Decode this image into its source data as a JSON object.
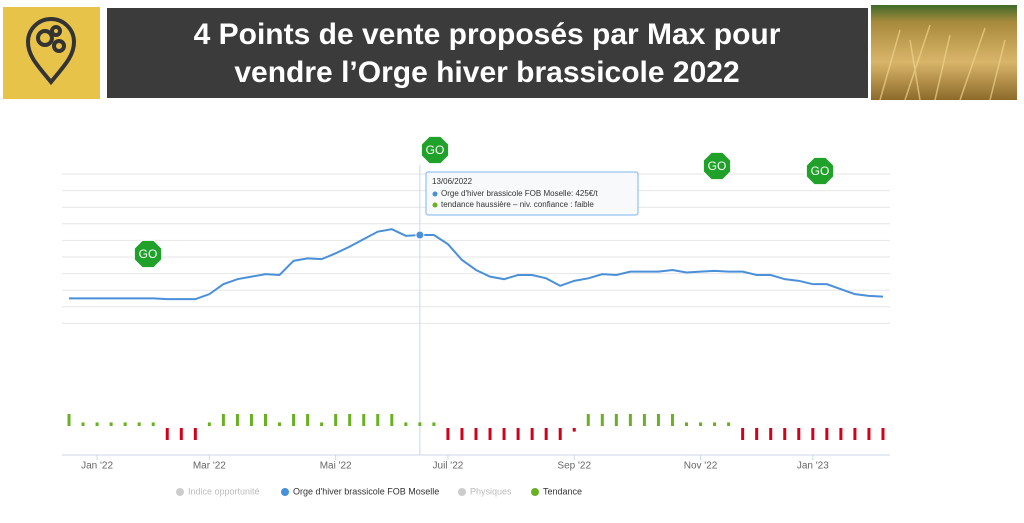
{
  "header": {
    "title_lines": [
      "4 Points de vente proposés par Max pour",
      "vendre l’Orge hiver brassicole 2022"
    ]
  },
  "chart_data": {
    "type": "line",
    "categories": [
      null,
      null,
      "Jan '22",
      null,
      null,
      null,
      null,
      null,
      null,
      null,
      "Mar '22",
      null,
      null,
      null,
      null,
      null,
      null,
      null,
      null,
      "Mai '22",
      null,
      null,
      null,
      null,
      null,
      null,
      null,
      "Juil '22",
      null,
      null,
      null,
      null,
      null,
      null,
      null,
      null,
      "Sep '22",
      null,
      null,
      null,
      null,
      null,
      null,
      null,
      null,
      "Nov '22",
      null,
      null,
      null,
      null,
      null,
      null,
      null,
      "Jan '23",
      null,
      null,
      null,
      null,
      null
    ],
    "ylim": [
      293,
      509
    ],
    "series": [
      {
        "name": "Orge d'hiver brassicole FOB Moselle",
        "color": "#4a90d9",
        "values": [
          349,
          349,
          349,
          349,
          349,
          349,
          349,
          348,
          348,
          348,
          354,
          366,
          372,
          375,
          378,
          377,
          394,
          397,
          396,
          403,
          411,
          420,
          429,
          432,
          424,
          425,
          425,
          414,
          395,
          383,
          375,
          372,
          377,
          377,
          373,
          364,
          370,
          373,
          378,
          377,
          381,
          381,
          381,
          383,
          380,
          381,
          382,
          381,
          381,
          377,
          377,
          372,
          370,
          366,
          366,
          360,
          354,
          352,
          351
        ]
      },
      {
        "name": "Tendance",
        "color": "#6ab023",
        "negative_color": "#d0021b",
        "values": [
          1,
          0.3,
          0.3,
          0.3,
          0.3,
          0.3,
          0.3,
          -1,
          -1,
          -1,
          0.3,
          1,
          1,
          1,
          1,
          0.3,
          1,
          1,
          0.3,
          1,
          1,
          1,
          1,
          1,
          0.3,
          0.3,
          0.3,
          -1,
          -1,
          -1,
          -1,
          -1,
          -1,
          -1,
          -1,
          -1,
          -0.3,
          1,
          1,
          1,
          1,
          1,
          1,
          1,
          0.3,
          0.3,
          0.3,
          0.3,
          -1,
          -1,
          -1,
          -1,
          -1,
          -1,
          -1,
          -1,
          -1,
          -1,
          -1
        ]
      }
    ],
    "hidden_series": [
      {
        "name": "Indice opportunité",
        "color": "#cccccc"
      },
      {
        "name": "Physiques",
        "color": "#cccccc"
      }
    ],
    "annotations": [
      "GO",
      "GO",
      "GO",
      "GO"
    ],
    "tooltip": {
      "date": "13/06/2022",
      "lines": [
        "Orge d'hiver brassicole FOB Moselle: 425€/t",
        "tendance haussière – niv. confiance : faible"
      ]
    }
  }
}
